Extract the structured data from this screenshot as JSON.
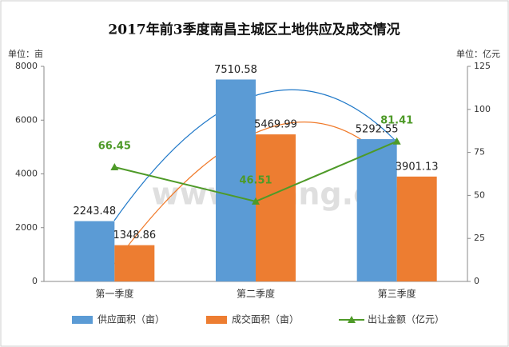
{
  "chart_data": {
    "type": "bar_line",
    "title": "2017年前3季度南昌主城区土地供应及成交情况",
    "y_label": "单位：亩",
    "y2_label": "单位：亿元",
    "watermark": "www.Lfang.com",
    "categories": [
      "第一季度",
      "第二季度",
      "第三季度"
    ],
    "series": [
      {
        "name": "供应面积（亩）",
        "type": "bar",
        "color": "#5b9bd5",
        "values": [
          2243.48,
          7510.58,
          5292.55
        ]
      },
      {
        "name": "成交面积（亩）",
        "type": "bar",
        "color": "#ed7d31",
        "values": [
          1348.86,
          5469.99,
          3901.13
        ]
      },
      {
        "name": "出让金额（亿元）",
        "type": "line",
        "axis": "y2",
        "color": "#4e9a28",
        "values": [
          66.45,
          46.51,
          81.41
        ]
      }
    ],
    "ylim": [
      0,
      8000
    ],
    "yticks": [
      0,
      2000,
      4000,
      6000,
      8000
    ],
    "y2lim": [
      0,
      125
    ],
    "y2ticks": [
      0,
      25,
      50,
      75,
      100,
      125
    ],
    "legend": "bottom"
  }
}
